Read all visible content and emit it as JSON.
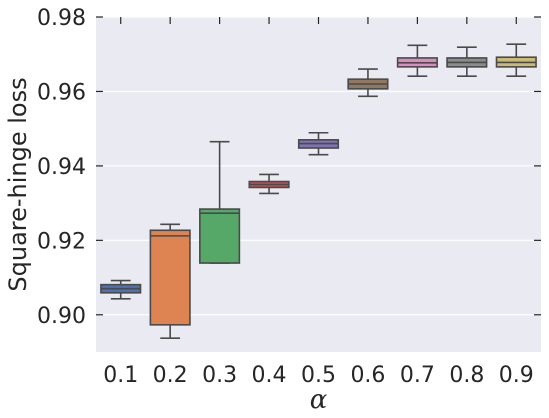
{
  "chart_data": {
    "type": "box",
    "xlabel": "α",
    "ylabel": "Square-hinge loss",
    "ylim": [
      0.89,
      0.98
    ],
    "yticks": [
      0.9,
      0.92,
      0.94,
      0.96,
      0.98
    ],
    "ytick_labels": [
      "0.90",
      "0.92",
      "0.94",
      "0.96",
      "0.98"
    ],
    "grid": true,
    "categories": [
      "0.1",
      "0.2",
      "0.3",
      "0.4",
      "0.5",
      "0.6",
      "0.7",
      "0.8",
      "0.9"
    ],
    "boxes": [
      {
        "category": "0.1",
        "whisker_low": 0.9043,
        "q1": 0.9059,
        "median": 0.907,
        "q3": 0.9081,
        "whisker_high": 0.9092,
        "color": "#4c72b0"
      },
      {
        "category": "0.2",
        "whisker_low": 0.8937,
        "q1": 0.8973,
        "median": 0.9212,
        "q3": 0.9227,
        "whisker_high": 0.9243,
        "color": "#dd8452"
      },
      {
        "category": "0.3",
        "whisker_low": 0.9139,
        "q1": 0.9139,
        "median": 0.9273,
        "q3": 0.9284,
        "whisker_high": 0.9465,
        "color": "#55a868"
      },
      {
        "category": "0.4",
        "whisker_low": 0.9326,
        "q1": 0.9342,
        "median": 0.935,
        "q3": 0.9358,
        "whisker_high": 0.9377,
        "color": "#c44e52"
      },
      {
        "category": "0.5",
        "whisker_low": 0.943,
        "q1": 0.9448,
        "median": 0.946,
        "q3": 0.947,
        "whisker_high": 0.9489,
        "color": "#8172b3"
      },
      {
        "category": "0.6",
        "whisker_low": 0.9587,
        "q1": 0.9607,
        "median": 0.962,
        "q3": 0.9633,
        "whisker_high": 0.966,
        "color": "#937860"
      },
      {
        "category": "0.7",
        "whisker_low": 0.9641,
        "q1": 0.9666,
        "median": 0.9677,
        "q3": 0.969,
        "whisker_high": 0.9724,
        "color": "#da8bc3"
      },
      {
        "category": "0.8",
        "whisker_low": 0.9641,
        "q1": 0.9666,
        "median": 0.9678,
        "q3": 0.969,
        "whisker_high": 0.9719,
        "color": "#8c8c8c"
      },
      {
        "category": "0.9",
        "whisker_low": 0.9641,
        "q1": 0.9666,
        "median": 0.9678,
        "q3": 0.9692,
        "whisker_high": 0.9727,
        "color": "#ccb974"
      }
    ]
  }
}
